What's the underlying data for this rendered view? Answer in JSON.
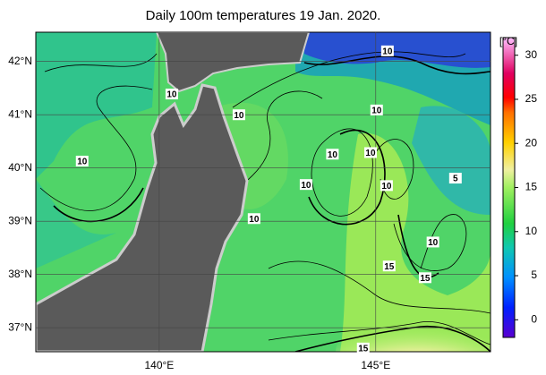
{
  "chart_data": {
    "type": "map",
    "title": "Daily 100m temperatures 19 Jan. 2020.",
    "xlim": [
      137.15,
      147.65
    ],
    "ylim": [
      36.55,
      42.55
    ],
    "xticks": [
      {
        "value": 140,
        "label": "140°E"
      },
      {
        "value": 145,
        "label": "145°E"
      }
    ],
    "yticks": [
      {
        "value": 37,
        "label": "37°N"
      },
      {
        "value": 38,
        "label": "38°N"
      },
      {
        "value": 39,
        "label": "39°N"
      },
      {
        "value": 40,
        "label": "40°N"
      },
      {
        "value": 41,
        "label": "41°N"
      },
      {
        "value": 42,
        "label": "42°N"
      }
    ],
    "colorbar": {
      "label": "[°C]",
      "clim": [
        -2,
        32
      ],
      "ticks": [
        0,
        5,
        10,
        15,
        20,
        25,
        30
      ]
    },
    "contour_labels": [
      {
        "text": "10",
        "lon": 145.27,
        "lat": 42.2
      },
      {
        "text": "10",
        "lon": 140.29,
        "lat": 41.39
      },
      {
        "text": "10",
        "lon": 141.84,
        "lat": 41.0
      },
      {
        "text": "10",
        "lon": 138.22,
        "lat": 40.13
      },
      {
        "text": "10",
        "lon": 145.02,
        "lat": 41.09
      },
      {
        "text": "10",
        "lon": 144.0,
        "lat": 40.26
      },
      {
        "text": "10",
        "lon": 144.88,
        "lat": 40.29
      },
      {
        "text": "10",
        "lon": 143.39,
        "lat": 39.69
      },
      {
        "text": "10",
        "lon": 145.25,
        "lat": 39.67
      },
      {
        "text": "10",
        "lon": 142.19,
        "lat": 39.05
      },
      {
        "text": "5",
        "lon": 146.84,
        "lat": 39.81
      },
      {
        "text": "10",
        "lon": 146.32,
        "lat": 38.61
      },
      {
        "text": "15",
        "lon": 145.31,
        "lat": 38.16
      },
      {
        "text": "15",
        "lon": 146.14,
        "lat": 37.94
      },
      {
        "text": "15",
        "lon": 144.71,
        "lat": 36.62
      }
    ]
  }
}
